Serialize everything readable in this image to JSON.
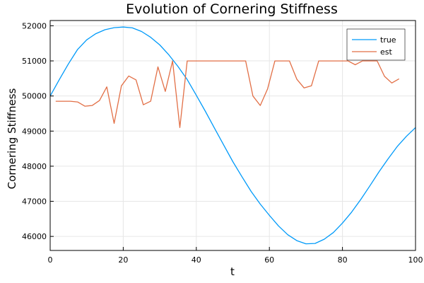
{
  "chart_data": {
    "type": "line",
    "title": "Evolution of Cornering Stiffness",
    "xlabel": "t",
    "ylabel": "Cornering Stiffness",
    "xlim": [
      0,
      100
    ],
    "ylim": [
      45600,
      52150
    ],
    "xticks": [
      0,
      20,
      40,
      60,
      80,
      100
    ],
    "yticks": [
      46000,
      47000,
      48000,
      49000,
      50000,
      51000,
      52000
    ],
    "grid": true,
    "legend_position": "top-right",
    "series": [
      {
        "name": "true",
        "color": "#009af9",
        "x": [
          0,
          2.5,
          5,
          7.5,
          10,
          12.5,
          15,
          17.5,
          20,
          22.5,
          25,
          27.5,
          30,
          32.5,
          35,
          37.5,
          40,
          42.5,
          45,
          47.5,
          50,
          52.5,
          55,
          57.5,
          60,
          62.5,
          65,
          67.5,
          70,
          72.5,
          75,
          77.5,
          80,
          82.5,
          85,
          87.5,
          90,
          92.5,
          95,
          97.5,
          100
        ],
        "y": [
          50000,
          50465,
          50914,
          51326,
          51599,
          51776,
          51889,
          51947,
          51965,
          51940,
          51837,
          51673,
          51455,
          51170,
          50840,
          50470,
          50020,
          49560,
          49080,
          48600,
          48130,
          47700,
          47280,
          46920,
          46600,
          46300,
          46050,
          45880,
          45790,
          45800,
          45920,
          46110,
          46380,
          46690,
          47050,
          47440,
          47840,
          48210,
          48560,
          48850,
          49100
        ]
      },
      {
        "name": "est",
        "color": "#e26f46",
        "x": [
          1.5,
          3.5,
          5.5,
          7.5,
          9.5,
          11.5,
          13.5,
          15.5,
          17.5,
          19.5,
          21.5,
          23.5,
          25.5,
          27.5,
          29.5,
          31.5,
          33.5,
          35.5,
          37.5,
          41.5,
          45.5,
          49.5,
          53.5,
          55.5,
          57.5,
          59.5,
          61.5,
          65.5,
          67.5,
          69.5,
          71.5,
          73.5,
          75.5,
          79.5,
          81.5,
          83.5,
          85.5,
          87.5,
          89.5,
          91.5,
          93.5,
          95.5
        ],
        "y": [
          49850,
          49850,
          49850,
          49830,
          49710,
          49730,
          49870,
          50260,
          49220,
          50290,
          50570,
          50460,
          49750,
          49850,
          50830,
          50130,
          51000,
          49100,
          51000,
          51000,
          51000,
          51000,
          51000,
          50000,
          49730,
          50200,
          51000,
          51000,
          50480,
          50230,
          50290,
          51000,
          51000,
          51000,
          51000,
          50890,
          51000,
          51000,
          51000,
          50560,
          50370,
          50490
        ]
      }
    ]
  }
}
